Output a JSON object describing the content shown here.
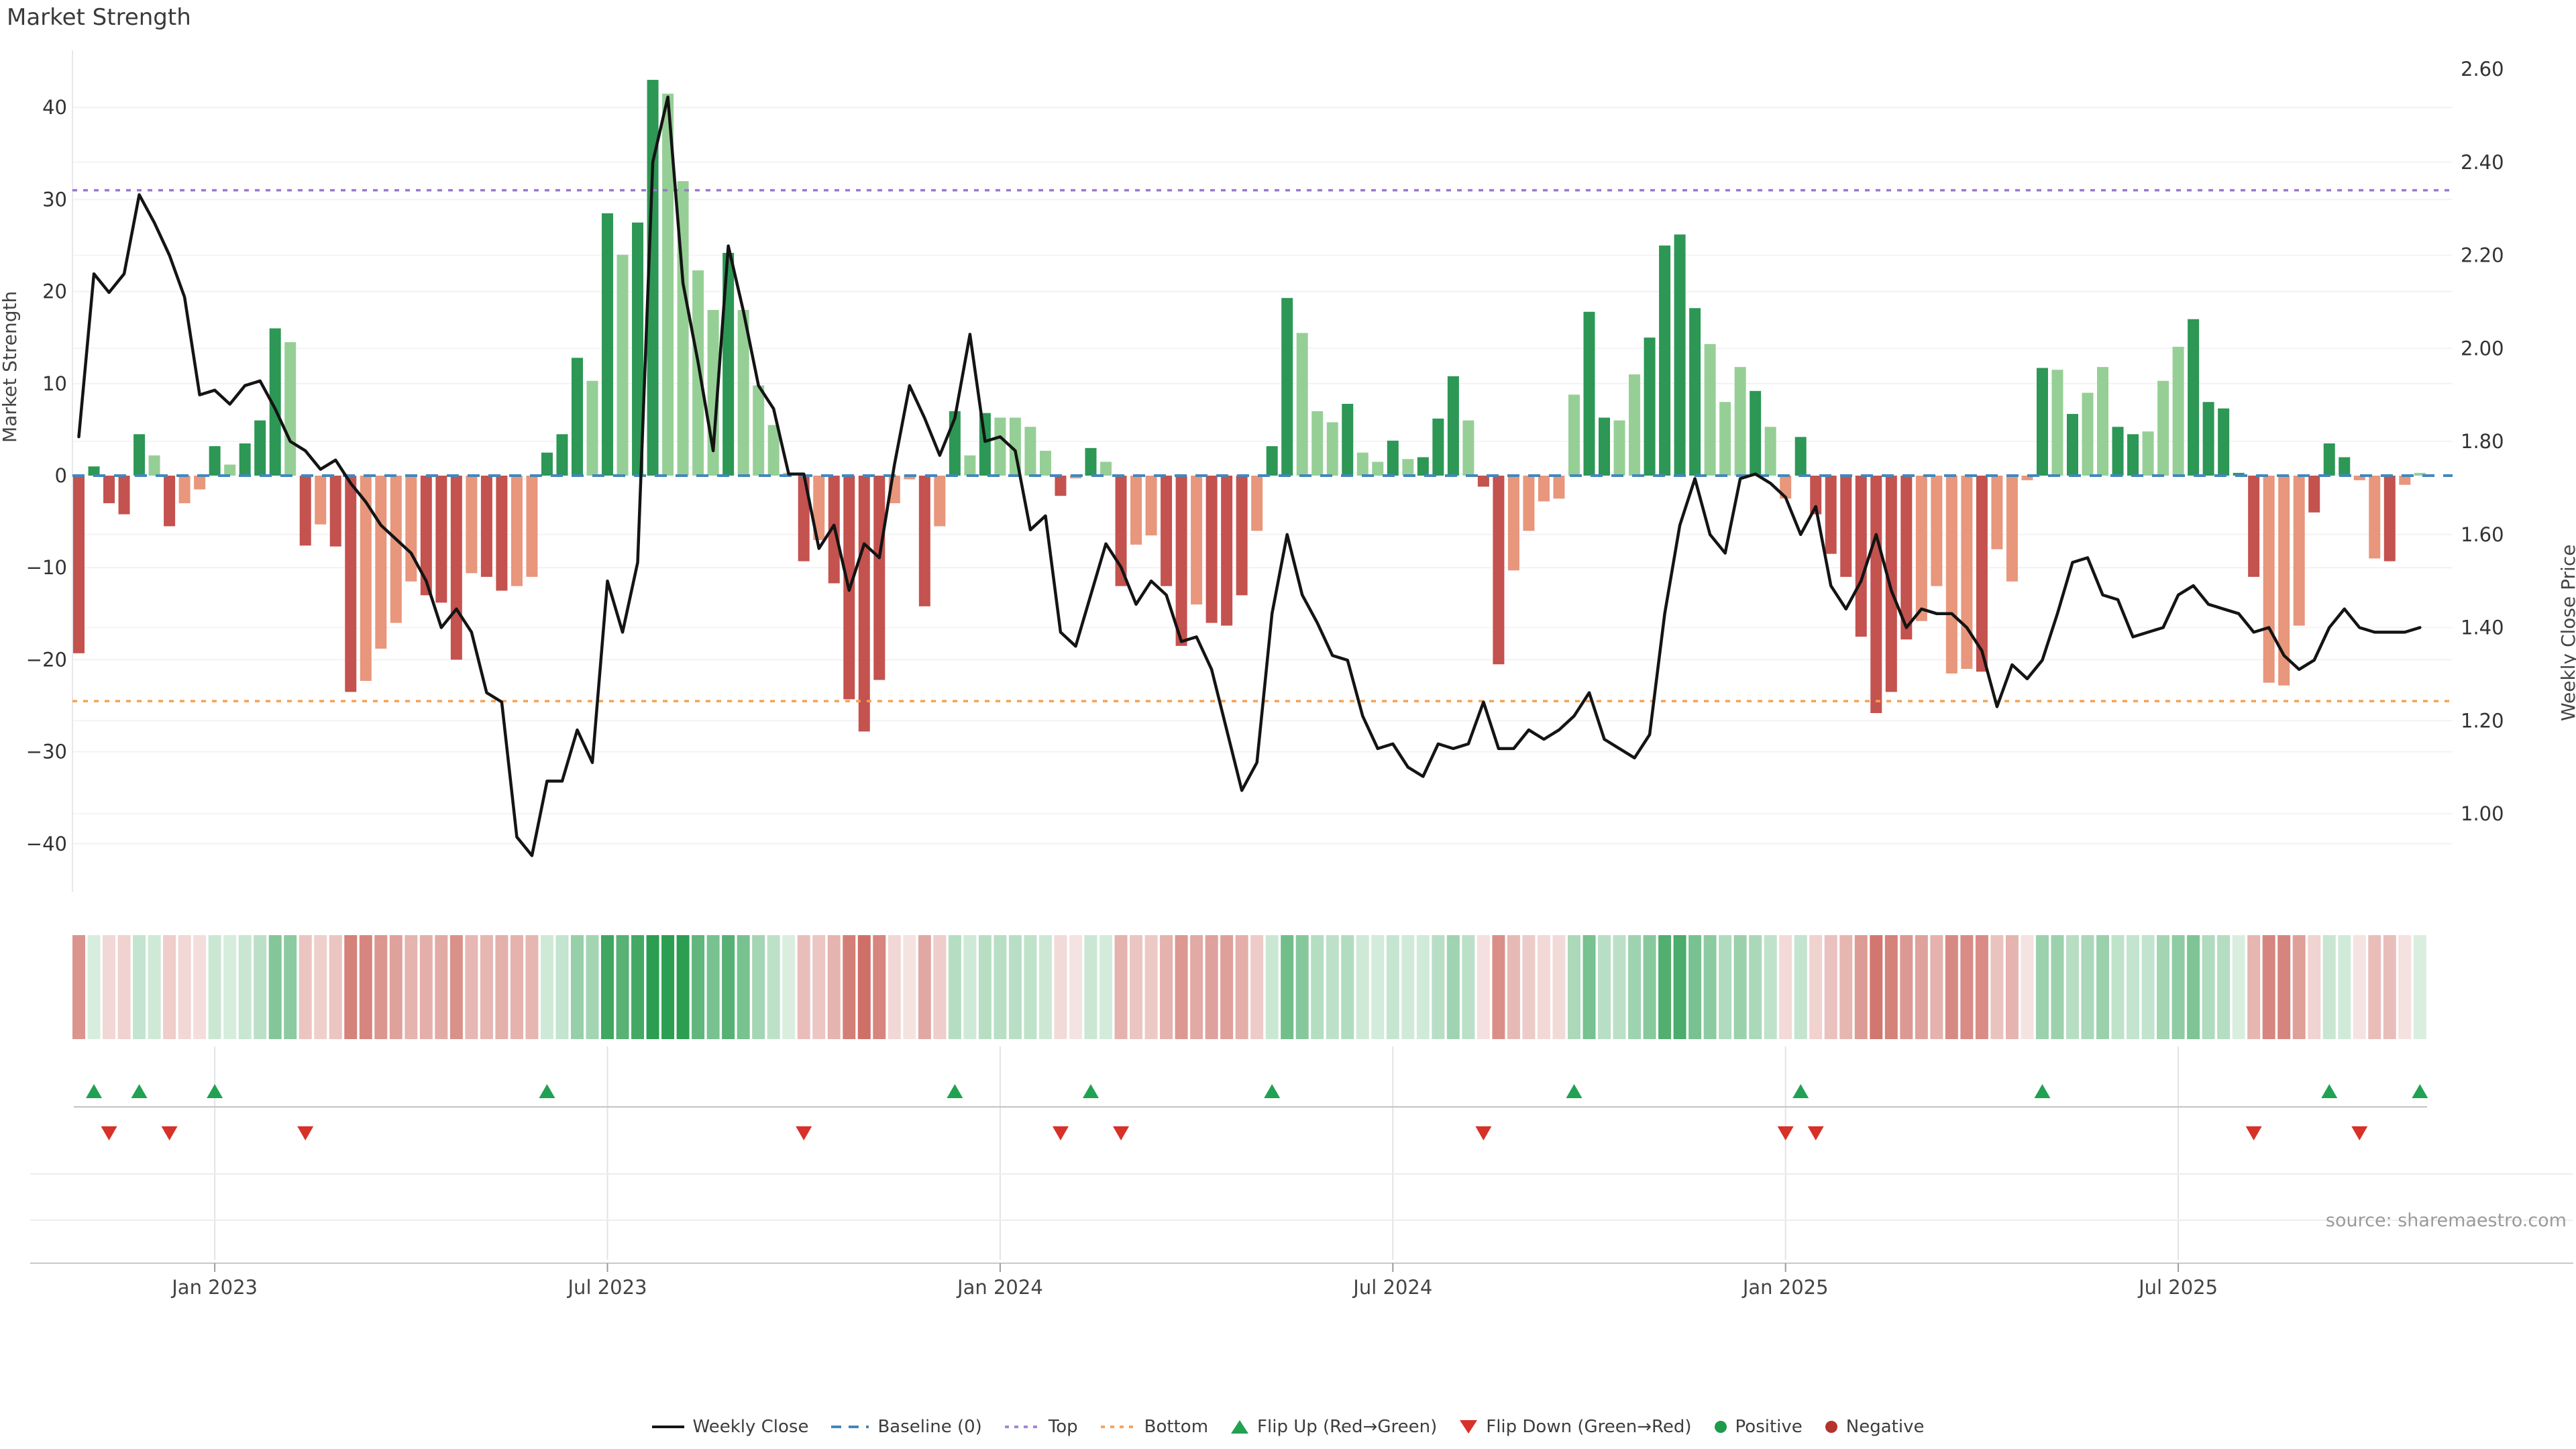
{
  "title": "Market Strength",
  "source": "source: sharemaestro.com",
  "axes": {
    "left_label": "Market Strength",
    "right_label": "Weekly Close Price",
    "left_ticks": [
      "40",
      "30",
      "20",
      "10",
      "0",
      "−10",
      "−20",
      "−30",
      "−40"
    ],
    "right_ticks": [
      "2.60",
      "2.40",
      "2.20",
      "2.00",
      "1.80",
      "1.60",
      "1.40",
      "1.20",
      "1.00"
    ],
    "x_ticks": [
      {
        "label": "Jan 2023",
        "week": 9
      },
      {
        "label": "Jul 2023",
        "week": 35
      },
      {
        "label": "Jan 2024",
        "week": 61
      },
      {
        "label": "Jul 2024",
        "week": 87
      },
      {
        "label": "Jan 2025",
        "week": 113
      },
      {
        "label": "Jul 2025",
        "week": 139
      }
    ]
  },
  "legend": {
    "items": [
      {
        "label": "Weekly Close",
        "glyph": "solid-line"
      },
      {
        "label": "Baseline (0)",
        "glyph": "blue-dashes"
      },
      {
        "label": "Top",
        "glyph": "purple-dots"
      },
      {
        "label": "Bottom",
        "glyph": "orange-dots"
      },
      {
        "label": "Flip Up (Red→Green)",
        "glyph": "green-up-triangle"
      },
      {
        "label": "Flip Down (Green→Red)",
        "glyph": "red-down-triangle"
      },
      {
        "label": "Positive",
        "glyph": "green-circle"
      },
      {
        "label": "Negative",
        "glyph": "red-circle"
      }
    ]
  },
  "colors": {
    "bar_green_dark": "#2d9755",
    "bar_green_light": "#96cf96",
    "bar_red_dark": "#c4524e",
    "bar_red_light": "#e8967c",
    "line": "#141414",
    "baseline": "#4387bb",
    "top": "#9b77cf",
    "bottom": "#f9a04f",
    "flip_up": "#21a152",
    "flip_down": "#d7312a",
    "positive_dot": "#1d9a4a",
    "negative_dot": "#b5332a",
    "heat_green_rgb": "35,154,74",
    "heat_red_rgb": "198,88,78"
  },
  "chart_data": {
    "type": "combo",
    "description": "Weekly market-strength bars (left axis) with weekly close price line (right axis), heatmap strip of bar values, and flip markers at sign changes",
    "start_week": "2022-10-31",
    "frequency": "weekly",
    "n_weeks": 156,
    "left_axis": {
      "label": "Market Strength",
      "range": [
        -45,
        46
      ],
      "ticks": [
        40,
        30,
        20,
        10,
        0,
        -10,
        -20,
        -30,
        -40
      ]
    },
    "right_axis": {
      "label": "Weekly Close Price",
      "range": [
        0.85,
        2.64
      ],
      "ticks": [
        2.6,
        2.4,
        2.2,
        2.0,
        1.8,
        1.6,
        1.4,
        1.2,
        1.0
      ]
    },
    "reference_lines": {
      "baseline": 0,
      "top": 31,
      "bottom": -24.5
    },
    "series": [
      {
        "name": "Market Strength",
        "type": "bar",
        "axis": "left",
        "values": [
          -19.3,
          1,
          -3,
          -4.2,
          4.5,
          2.2,
          -5.5,
          -3,
          -1.5,
          3.2,
          1.2,
          3.5,
          6,
          16,
          14.5,
          -7.6,
          -5.3,
          -7.7,
          -23.5,
          -22.3,
          -18.8,
          -16,
          -11.5,
          -13,
          -13.8,
          -20,
          -10.6,
          -11,
          -12.5,
          -12,
          -11,
          2.5,
          4.5,
          12.8,
          10.3,
          28.5,
          24,
          27.5,
          43,
          41.5,
          32,
          22.3,
          18,
          24.2,
          18,
          9.8,
          5.5,
          0.3,
          -9.3,
          -7,
          -11.7,
          -24.3,
          -27.8,
          -22.2,
          -3,
          -0.4,
          -14.2,
          -5.5,
          7,
          2.2,
          6.8,
          6.3,
          6.3,
          5.3,
          2.7,
          -2.2,
          -0.3,
          3,
          1.5,
          -12,
          -7.5,
          -6.5,
          -12,
          -18.5,
          -14,
          -16,
          -16.3,
          -13,
          -6,
          3.2,
          19.3,
          15.5,
          7,
          5.8,
          7.8,
          2.5,
          1.5,
          3.8,
          1.8,
          2,
          6.2,
          10.8,
          6,
          -1.2,
          -20.5,
          -10.3,
          -6,
          -2.8,
          -2.5,
          8.8,
          17.8,
          6.3,
          6,
          11,
          15,
          25,
          26.2,
          18.2,
          14.3,
          8,
          11.8,
          9.2,
          5.3,
          -2.5,
          4.2,
          -4.2,
          -8.5,
          -11,
          -17.5,
          -25.8,
          -23.5,
          -17.8,
          -15.8,
          -12,
          -21.5,
          -21,
          -21.3,
          -8,
          -11.5,
          -0.5,
          11.7,
          11.5,
          6.7,
          9,
          11.8,
          5.3,
          4.5,
          4.8,
          10.3,
          14,
          17,
          8,
          7.3,
          0.3,
          -11,
          -22.5,
          -22.8,
          -16.3,
          -4,
          3.5,
          2,
          -0.5,
          -9,
          -9.3,
          -1,
          0.3
        ],
        "shades": "dddddldlldldddldlddlllldddlddlldddldlddlllldlllldlddddlldldldlllldldldllddldddlddllldlldldddlddlllllddllddddllldllddddddddlllldllldldllddllldddddllldddlldllddld"
      },
      {
        "name": "Weekly Close",
        "type": "line",
        "axis": "right",
        "values": [
          1.81,
          2.16,
          2.12,
          2.16,
          2.33,
          2.27,
          2.2,
          2.11,
          1.9,
          1.91,
          1.88,
          1.92,
          1.93,
          1.87,
          1.8,
          1.78,
          1.74,
          1.76,
          1.71,
          1.67,
          1.62,
          1.59,
          1.56,
          1.5,
          1.4,
          1.44,
          1.39,
          1.26,
          1.24,
          0.95,
          0.91,
          1.07,
          1.07,
          1.18,
          1.11,
          1.5,
          1.39,
          1.54,
          2.4,
          2.54,
          2.14,
          1.97,
          1.78,
          2.22,
          2.08,
          1.92,
          1.87,
          1.73,
          1.73,
          1.57,
          1.62,
          1.48,
          1.58,
          1.55,
          1.75,
          1.92,
          1.85,
          1.77,
          1.85,
          2.03,
          1.8,
          1.81,
          1.78,
          1.61,
          1.64,
          1.39,
          1.36,
          1.47,
          1.58,
          1.53,
          1.45,
          1.5,
          1.47,
          1.37,
          1.38,
          1.31,
          1.18,
          1.05,
          1.11,
          1.43,
          1.6,
          1.47,
          1.41,
          1.34,
          1.33,
          1.21,
          1.14,
          1.15,
          1.1,
          1.08,
          1.15,
          1.14,
          1.15,
          1.24,
          1.14,
          1.14,
          1.18,
          1.16,
          1.18,
          1.21,
          1.26,
          1.16,
          1.14,
          1.12,
          1.17,
          1.43,
          1.62,
          1.72,
          1.6,
          1.56,
          1.72,
          1.73,
          1.71,
          1.68,
          1.6,
          1.66,
          1.49,
          1.44,
          1.5,
          1.6,
          1.48,
          1.4,
          1.44,
          1.43,
          1.43,
          1.4,
          1.35,
          1.23,
          1.32,
          1.29,
          1.33,
          1.43,
          1.54,
          1.55,
          1.47,
          1.46,
          1.38,
          1.39,
          1.4,
          1.47,
          1.49,
          1.45,
          1.44,
          1.43,
          1.39,
          1.4,
          1.34,
          1.31,
          1.33,
          1.4,
          1.44,
          1.4,
          1.39,
          1.39,
          1.39,
          1.4
        ]
      }
    ],
    "heatmap": {
      "note": "strip colored by Market Strength value, green=positive red=negative, intensity ~ |value|"
    },
    "flip_up_weeks": [
      1,
      4,
      9,
      31,
      58,
      67,
      79,
      99,
      114,
      130,
      149,
      155
    ],
    "flip_down_weeks": [
      2,
      6,
      15,
      48,
      65,
      69,
      93,
      113,
      115,
      144,
      151
    ]
  }
}
